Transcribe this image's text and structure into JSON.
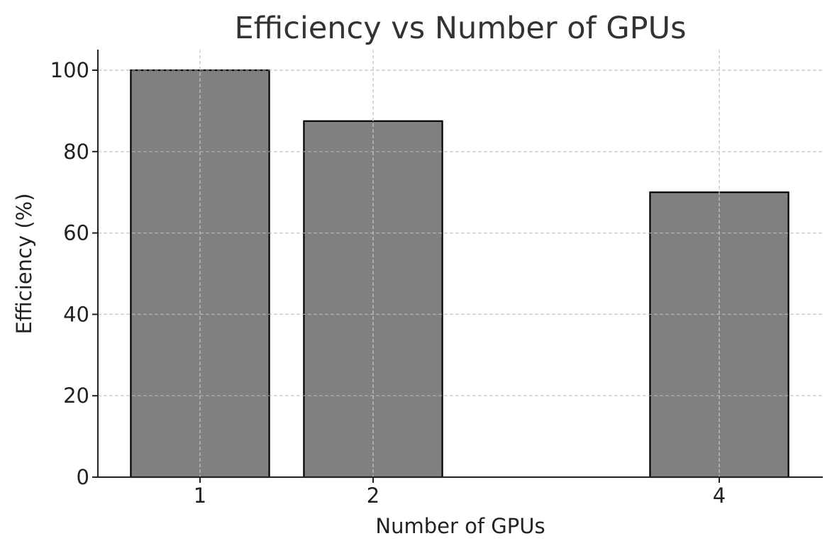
{
  "chart_data": {
    "type": "bar",
    "title": "Efficiency vs Number of GPUs",
    "xlabel": "Number of GPUs",
    "ylabel": "Efficiency (%)",
    "x": [
      1,
      2,
      4
    ],
    "categories": [
      "1",
      "2",
      "4"
    ],
    "values": [
      100,
      87.5,
      70
    ],
    "xticks": [
      1,
      2,
      4
    ],
    "yticks": [
      0,
      20,
      40,
      60,
      80,
      100
    ],
    "ylim": [
      0,
      105
    ],
    "xlim": [
      0.42,
      4.6
    ],
    "bar_width": 0.8,
    "grid": true,
    "bar_color": "#808080",
    "edge_color": "#000000"
  }
}
